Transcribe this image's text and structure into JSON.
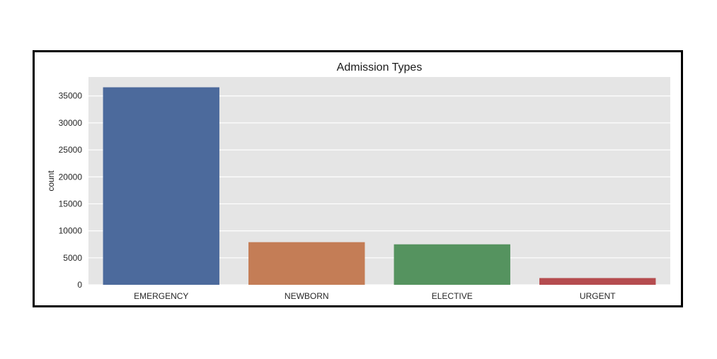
{
  "chart_data": {
    "type": "bar",
    "title": "Admission Types",
    "xlabel": "",
    "ylabel": "count",
    "categories": [
      "EMERGENCY",
      "NEWBORN",
      "ELECTIVE",
      "URGENT"
    ],
    "values": [
      36600,
      7900,
      7500,
      1250
    ],
    "colors": [
      "#4c6a9c",
      "#c47d56",
      "#55935f",
      "#b54c4f"
    ],
    "yticks": [
      0,
      5000,
      10000,
      15000,
      20000,
      25000,
      30000,
      35000
    ],
    "ylim": [
      0,
      38500
    ],
    "grid": true,
    "plot_background": "#e5e5e5",
    "grid_color": "#ffffff"
  }
}
